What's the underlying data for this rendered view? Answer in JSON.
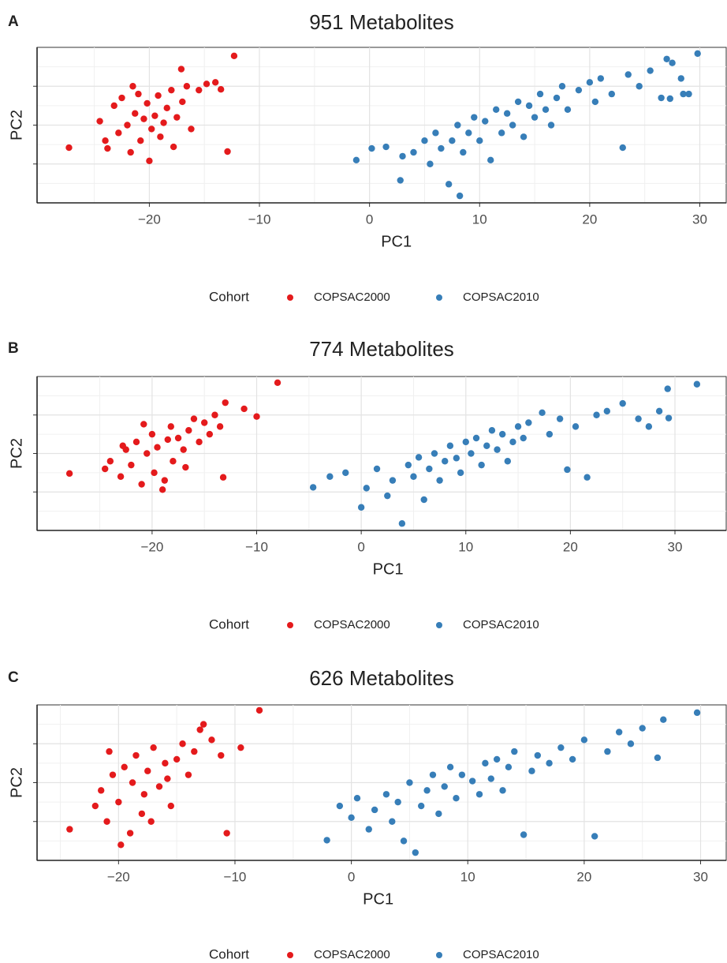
{
  "chart_data": [
    {
      "type": "scatter",
      "panel": "A",
      "title": "951 Metabolites",
      "xlabel": "PC1",
      "ylabel": "PC2",
      "xlim": [
        -30.2,
        32.4
      ],
      "ylim": [
        -10,
        10
      ],
      "xticks": [
        {
          "value": -20,
          "label": "−20"
        },
        {
          "value": -10,
          "label": "−10"
        },
        0,
        10,
        20,
        30
      ],
      "yticks": [
        -5,
        0,
        5
      ],
      "grid": true,
      "legend": "bottom",
      "legend_title": "Cohort",
      "series": [
        {
          "name": "COPSAC2000",
          "color": "#e41a1c",
          "x": [
            -27.3,
            -12.3,
            -12.9,
            -17.1,
            -24.5,
            -24.0,
            -23.2,
            -22.8,
            -22.5,
            -22.0,
            -21.7,
            -21.3,
            -21.0,
            -20.8,
            -20.5,
            -20.2,
            -20.0,
            -19.8,
            -19.5,
            -19.2,
            -19.0,
            -18.7,
            -18.4,
            -18.0,
            -17.8,
            -17.5,
            -17.0,
            -16.6,
            -16.2,
            -15.5,
            -14.8,
            -14.0,
            -13.5,
            -23.8,
            -21.5
          ],
          "y": [
            -2.9,
            8.9,
            -3.4,
            7.2,
            0.5,
            -2.0,
            2.5,
            -1.0,
            3.5,
            0.0,
            -3.5,
            1.5,
            4.0,
            -2.0,
            0.8,
            2.8,
            -4.6,
            -0.5,
            1.2,
            3.8,
            -1.5,
            0.3,
            2.2,
            4.5,
            -2.8,
            1.0,
            3.0,
            5.0,
            -0.5,
            4.5,
            5.3,
            5.5,
            4.6,
            -3.0,
            5.0
          ]
        },
        {
          "name": "COPSAC2010",
          "color": "#377eb8",
          "x": [
            -1.2,
            0.2,
            1.5,
            2.8,
            3.0,
            4.0,
            5.0,
            5.5,
            6.0,
            6.5,
            7.2,
            7.5,
            8.0,
            8.2,
            8.5,
            9.0,
            9.5,
            10.0,
            10.5,
            11.0,
            11.5,
            12.0,
            12.5,
            13.0,
            13.5,
            14.0,
            14.5,
            15.0,
            15.5,
            16.0,
            16.5,
            17.0,
            17.5,
            18.0,
            19.0,
            20.0,
            20.5,
            21.0,
            22.0,
            23.0,
            23.5,
            24.5,
            25.5,
            26.5,
            27.3,
            27.5,
            28.3,
            29.0,
            29.8,
            27.0,
            28.5
          ],
          "y": [
            -4.5,
            -3.0,
            -2.8,
            -7.1,
            -4.0,
            -3.5,
            -2.0,
            -5.0,
            -1.0,
            -3.0,
            -7.6,
            -2.0,
            0.0,
            -9.1,
            -3.5,
            -1.0,
            1.0,
            -2.0,
            0.5,
            -4.5,
            2.0,
            -1.0,
            1.5,
            0.0,
            3.0,
            -1.5,
            2.5,
            1.0,
            4.0,
            2.0,
            0.0,
            3.5,
            5.0,
            2.0,
            4.5,
            5.5,
            3.0,
            6.0,
            4.0,
            -2.9,
            6.5,
            5.0,
            7.0,
            3.5,
            3.4,
            8.0,
            6.0,
            4.0,
            9.2,
            8.5,
            4.0
          ]
        }
      ]
    },
    {
      "type": "scatter",
      "panel": "B",
      "title": "774 Metabolites",
      "xlabel": "PC1",
      "ylabel": "PC2",
      "xlim": [
        -31.0,
        34.9
      ],
      "ylim": [
        -10,
        10
      ],
      "xticks": [
        {
          "value": -20,
          "label": "−20"
        },
        {
          "value": -10,
          "label": "−10"
        },
        0,
        10,
        20,
        30
      ],
      "yticks": [
        -5,
        0,
        5
      ],
      "grid": true,
      "legend": "bottom",
      "legend_title": "Cohort",
      "series": [
        {
          "name": "COPSAC2000",
          "color": "#e41a1c",
          "x": [
            -27.9,
            -8.0,
            -13.2,
            -10.0,
            -11.2,
            -24.5,
            -24.0,
            -23.0,
            -22.5,
            -22.0,
            -21.5,
            -21.0,
            -20.5,
            -20.0,
            -19.8,
            -19.5,
            -19.0,
            -18.5,
            -18.2,
            -18.0,
            -17.5,
            -17.0,
            -16.5,
            -16.0,
            -15.5,
            -15.0,
            -14.5,
            -14.0,
            -13.5,
            -13.0,
            -20.8,
            -22.8,
            -18.8,
            -16.8
          ],
          "y": [
            -2.6,
            9.2,
            -3.1,
            4.8,
            5.8,
            -2.0,
            -1.0,
            -3.0,
            0.5,
            -1.5,
            1.5,
            -4.0,
            0.0,
            2.5,
            -2.5,
            0.8,
            -4.7,
            1.8,
            3.5,
            -1.0,
            2.0,
            0.5,
            3.0,
            4.5,
            1.5,
            4.0,
            2.5,
            5.0,
            3.5,
            6.6,
            3.8,
            1.0,
            -3.5,
            -1.8
          ]
        },
        {
          "name": "COPSAC2010",
          "color": "#377eb8",
          "x": [
            -4.6,
            -3.0,
            -1.5,
            0.0,
            0.5,
            1.5,
            2.5,
            3.0,
            3.9,
            4.5,
            5.0,
            5.5,
            6.0,
            6.5,
            7.0,
            7.5,
            8.0,
            8.5,
            9.1,
            9.5,
            10.0,
            10.5,
            11.0,
            11.5,
            12.0,
            12.5,
            13.0,
            13.5,
            14.0,
            14.5,
            15.0,
            15.5,
            16.0,
            17.3,
            18.0,
            19.0,
            19.7,
            20.5,
            21.6,
            22.5,
            23.5,
            25.0,
            26.5,
            27.5,
            28.5,
            29.3,
            29.4,
            32.1
          ],
          "y": [
            -4.4,
            -3.0,
            -2.5,
            -7.0,
            -4.5,
            -2.0,
            -5.5,
            -3.5,
            -9.1,
            -1.5,
            -3.0,
            -0.5,
            -6.0,
            -2.0,
            0.0,
            -3.5,
            -1.0,
            1.0,
            -0.6,
            -2.5,
            1.5,
            0.0,
            2.0,
            -1.5,
            1.0,
            3.0,
            0.5,
            2.5,
            -1.0,
            1.5,
            3.5,
            2.0,
            4.0,
            5.3,
            2.5,
            4.5,
            -2.1,
            3.5,
            -3.1,
            5.0,
            5.5,
            6.5,
            4.5,
            3.5,
            5.5,
            8.4,
            4.6,
            9.0
          ]
        }
      ]
    },
    {
      "type": "scatter",
      "panel": "C",
      "title": "626 Metabolites",
      "xlabel": "PC1",
      "ylabel": "PC2",
      "xlim": [
        -27.0,
        32.2
      ],
      "ylim": [
        -10,
        10
      ],
      "xticks": [
        {
          "value": -20,
          "label": "−20"
        },
        {
          "value": -10,
          "label": "−10"
        },
        0,
        10,
        20,
        30
      ],
      "yticks": [
        -5,
        0,
        5
      ],
      "grid": true,
      "legend": "bottom",
      "legend_title": "Cohort",
      "series": [
        {
          "name": "COPSAC2000",
          "color": "#e41a1c",
          "x": [
            -24.2,
            -7.9,
            -10.7,
            -12.7,
            -22.0,
            -21.5,
            -21.0,
            -20.5,
            -20.0,
            -19.5,
            -19.0,
            -18.8,
            -18.5,
            -18.0,
            -17.8,
            -17.5,
            -17.0,
            -16.5,
            -16.0,
            -15.5,
            -15.0,
            -14.5,
            -14.0,
            -13.5,
            -13.0,
            -12.0,
            -11.2,
            -9.5,
            -19.8,
            -17.2,
            -15.8,
            -20.8
          ],
          "y": [
            -6.0,
            9.3,
            -6.5,
            7.5,
            -3.0,
            -1.0,
            -5.0,
            1.0,
            -2.5,
            2.0,
            -6.5,
            0.0,
            3.5,
            -4.0,
            -1.5,
            1.5,
            4.5,
            -0.5,
            2.5,
            -3.0,
            3.0,
            5.0,
            1.0,
            4.0,
            6.8,
            5.5,
            3.5,
            4.5,
            -8.0,
            -5.0,
            0.5,
            4.0
          ]
        },
        {
          "name": "COPSAC2010",
          "color": "#377eb8",
          "x": [
            -2.1,
            -1.0,
            0.0,
            0.5,
            1.5,
            2.0,
            3.0,
            3.5,
            4.0,
            4.5,
            5.0,
            5.5,
            6.0,
            6.5,
            7.0,
            7.5,
            8.0,
            8.5,
            9.0,
            9.5,
            10.4,
            11.0,
            11.5,
            12.0,
            12.5,
            13.0,
            13.5,
            14.0,
            14.8,
            15.5,
            16.0,
            17.0,
            18.0,
            19.0,
            20.0,
            20.9,
            22.0,
            23.0,
            24.0,
            25.0,
            26.3,
            26.8,
            29.7
          ],
          "y": [
            -7.4,
            -3.0,
            -4.5,
            -2.0,
            -6.0,
            -3.5,
            -1.5,
            -5.0,
            -2.5,
            -7.5,
            0.0,
            -9.0,
            -3.0,
            -1.0,
            1.0,
            -4.0,
            -0.5,
            2.0,
            -2.0,
            1.0,
            0.2,
            -1.5,
            2.5,
            0.5,
            3.0,
            -1.0,
            2.0,
            4.0,
            -6.7,
            1.5,
            3.5,
            2.5,
            4.5,
            3.0,
            5.5,
            -6.9,
            4.0,
            6.5,
            5.0,
            7.0,
            3.2,
            8.1,
            9.0
          ]
        }
      ]
    }
  ]
}
